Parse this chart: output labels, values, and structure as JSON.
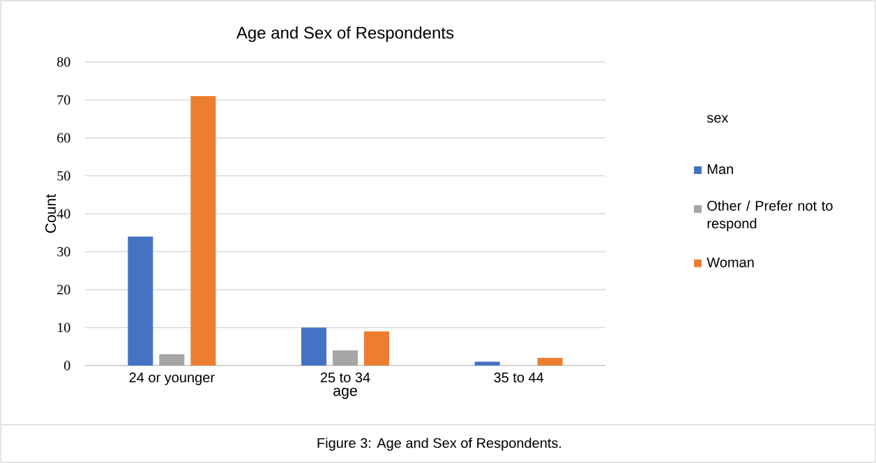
{
  "chart_data": {
    "type": "bar",
    "title": "Age and Sex of Respondents",
    "xlabel": "age",
    "ylabel": "Count",
    "legend_title": "sex",
    "categories": [
      "24 or younger",
      "25 to 34",
      "35 to 44"
    ],
    "series": [
      {
        "name": "Man",
        "color": "#4472c4",
        "values": [
          34,
          10,
          1
        ]
      },
      {
        "name": "Other / Prefer not to respond",
        "color": "#a5a5a5",
        "values": [
          3,
          4,
          0
        ]
      },
      {
        "name": "Woman",
        "color": "#ed7d31",
        "values": [
          71,
          9,
          2
        ]
      }
    ],
    "ylim": [
      0,
      80
    ],
    "yticks": [
      0,
      10,
      20,
      30,
      40,
      50,
      60,
      70,
      80
    ],
    "grid": "y",
    "legend": "right",
    "annotations": [
      "Figure 3: Age and Sex of Respondents."
    ]
  }
}
